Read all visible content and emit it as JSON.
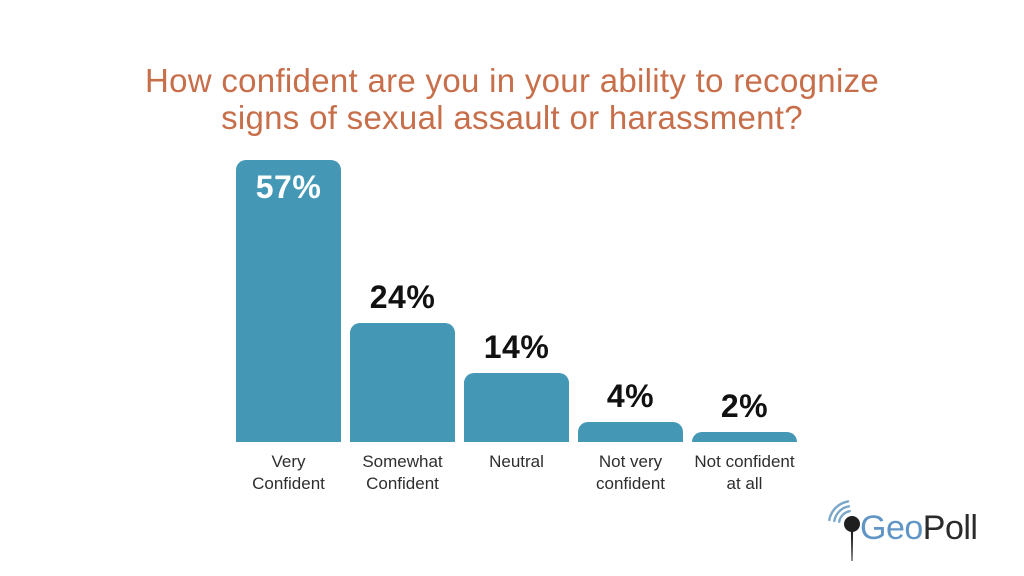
{
  "title": {
    "text": "How confident are you in your ability to recognize signs of sexual assault or harassment?",
    "lines": [
      "How confident are you in your ability to recognize",
      "signs of sexual assault or harassment?"
    ],
    "color": "#C76F4B"
  },
  "chart_data": {
    "type": "bar",
    "title": "How confident are you in your ability to recognize signs of sexual assault or harassment?",
    "categories": [
      "Very Confident",
      "Somewhat Confident",
      "Neutral",
      "Not very confident",
      "Not confident at all"
    ],
    "category_lines": [
      [
        "Very",
        "Confident"
      ],
      [
        "Somewhat",
        "Confident"
      ],
      [
        "Neutral"
      ],
      [
        "Not very",
        "confident"
      ],
      [
        "Not confident",
        "at all"
      ]
    ],
    "values": [
      57,
      24,
      14,
      4,
      2
    ],
    "value_labels": [
      "57%",
      "24%",
      "14%",
      "4%",
      "2%"
    ],
    "unit": "percent",
    "ylim": [
      0,
      57
    ],
    "grid": false,
    "legend": "none",
    "bar_color": "#4498B5",
    "value_label_color": "#111111",
    "inside_value_label_indexes": [
      0
    ],
    "inside_value_label_color": "#FFFFFF",
    "category_label_color": "#2E2E2E"
  },
  "logo": {
    "name": "GeoPoll",
    "part1": "Geo",
    "part2": "Poll",
    "part1_color": "#6095C6",
    "part2_color": "#2B2B2B",
    "icon": "map-pin-signal-icon",
    "icon_pin_color": "#1F1F1F",
    "icon_wave_color": "#7BA7C9"
  }
}
